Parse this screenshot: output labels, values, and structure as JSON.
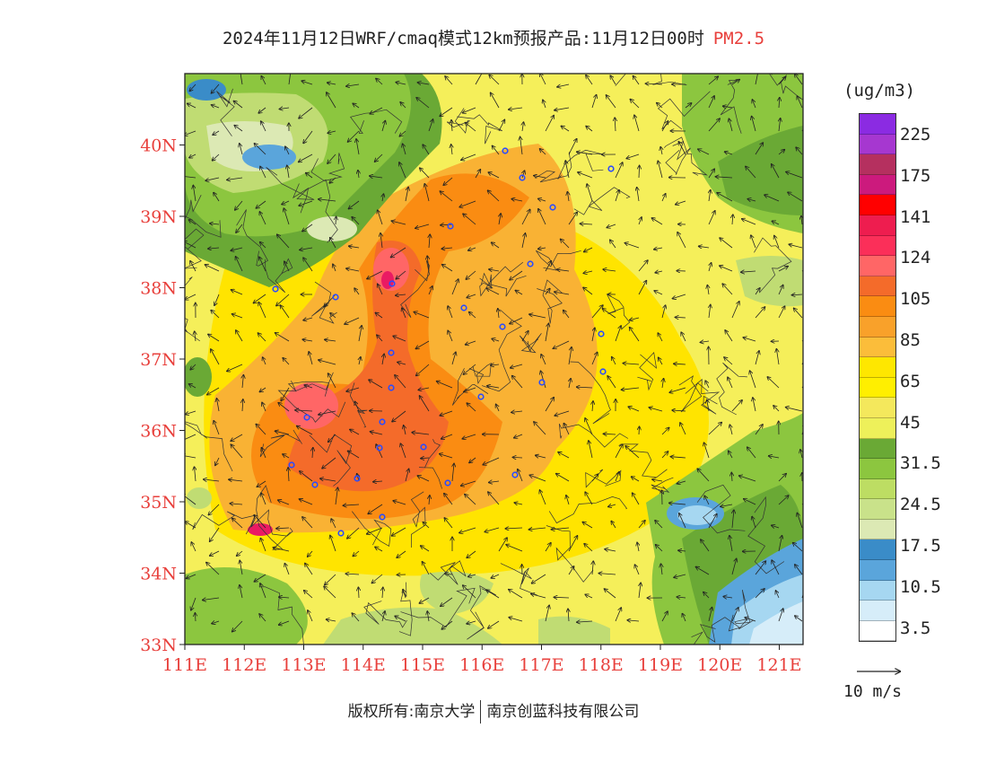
{
  "title": {
    "text": "2024年11月12日WRF/cmaq模式12km预报产品:11月12日00时",
    "pollutant": "PM2.5"
  },
  "map": {
    "lat_labels": [
      "40N",
      "39N",
      "38N",
      "37N",
      "36N",
      "35N",
      "34N",
      "33N"
    ],
    "lon_labels": [
      "111E",
      "112E",
      "113E",
      "114E",
      "115E",
      "116E",
      "117E",
      "118E",
      "119E",
      "120E",
      "121E"
    ],
    "lat_range": [
      33,
      41
    ],
    "lon_range": [
      111,
      121.4
    ],
    "field_colors": {
      "bg": "#f5ef5a",
      "mid": "#ffe400",
      "orange_light": "#f9b234",
      "orange": "#fa8c12",
      "orange_dark": "#f46b2a",
      "red": "#ff6666",
      "magenta": "#ea1a63",
      "green_dark": "#6aa935",
      "green": "#8cc63f",
      "green_light": "#c0dc73",
      "pale_green": "#dce9b4",
      "blue_dark": "#3a8cc8",
      "blue": "#5aa5db",
      "blue_light": "#a6d7f1",
      "blue_pale": "#d6edf9"
    }
  },
  "legend": {
    "unit": "(ug/m3)",
    "colors": [
      "#8b2be2",
      "#a637d0",
      "#b5305f",
      "#cc1a7d",
      "#ff0000",
      "#ee1d4f",
      "#fb2f59",
      "#ff6666",
      "#f46b2a",
      "#fa8c12",
      "#f9a12a",
      "#fbbd3a",
      "#fee700",
      "#ffef00",
      "#f4e85c",
      "#eef05a",
      "#6aa935",
      "#8cc63f",
      "#bddd63",
      "#c9e28a",
      "#dce9b4",
      "#3a8cc8",
      "#5aa5db",
      "#a6d7f1",
      "#d6edf9",
      "#ffffff"
    ],
    "ticks": [
      "225",
      "175",
      "141",
      "124",
      "105",
      "85",
      "65",
      "45",
      "31.5",
      "24.5",
      "17.5",
      "10.5",
      "3.5"
    ]
  },
  "wind_reference": {
    "label": "10 m/s"
  },
  "copyright": {
    "owner": "版权所有:南京大学",
    "company": "南京创蓝科技有限公司"
  }
}
